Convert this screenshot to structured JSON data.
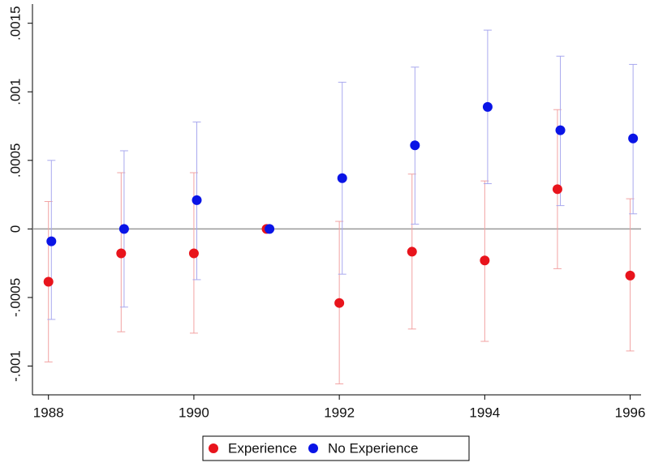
{
  "chart_data": {
    "type": "scatter",
    "xlim": [
      1987.78,
      1996.15
    ],
    "xticks": [
      1988,
      1990,
      1992,
      1994,
      1996
    ],
    "ylim": [
      -0.00121,
      0.00164
    ],
    "yticks": [
      {
        "value": -0.001,
        "label": "-.001"
      },
      {
        "value": -0.0005,
        "label": "-.0005"
      },
      0,
      {
        "value": 0.0005,
        "label": ".0005"
      },
      {
        "value": 0.001,
        "label": ".001"
      },
      {
        "value": 0.0015,
        "label": ".0015"
      }
    ],
    "reference_line": 0,
    "series": [
      {
        "name": "Experience",
        "color": "#e8141c",
        "error_color": "#f2a3a3",
        "x": [
          1988,
          1989,
          1990,
          1991,
          1992,
          1993,
          1994,
          1995,
          1996
        ],
        "values": [
          -0.000385,
          -0.000178,
          -0.000178,
          0,
          -0.00054,
          -0.000166,
          -0.00023,
          0.00029,
          -0.00034
        ],
        "lower": [
          -0.00097,
          -0.00075,
          -0.00076,
          null,
          -0.00113,
          -0.00073,
          -0.00082,
          -0.00029,
          -0.00089
        ],
        "upper": [
          0.0002,
          0.00041,
          0.00041,
          null,
          5.5e-05,
          0.0004,
          0.00035,
          0.00087,
          0.00022
        ]
      },
      {
        "name": "No Experience",
        "color": "#0a14e6",
        "error_color": "#a9a9ee",
        "x": [
          1988.04,
          1989.04,
          1990.04,
          1991.04,
          1992.04,
          1993.04,
          1994.04,
          1995.04,
          1996.04
        ],
        "values": [
          -9e-05,
          0,
          0.00021,
          0,
          0.00037,
          0.00061,
          0.00089,
          0.00072,
          0.00066
        ],
        "lower": [
          -0.00066,
          -0.00057,
          -0.00037,
          null,
          -0.00033,
          3.5e-05,
          0.00033,
          0.00017,
          0.00011
        ],
        "upper": [
          0.0005,
          0.00057,
          0.00078,
          null,
          0.00107,
          0.00118,
          0.00145,
          0.00126,
          0.0012
        ]
      }
    ]
  }
}
